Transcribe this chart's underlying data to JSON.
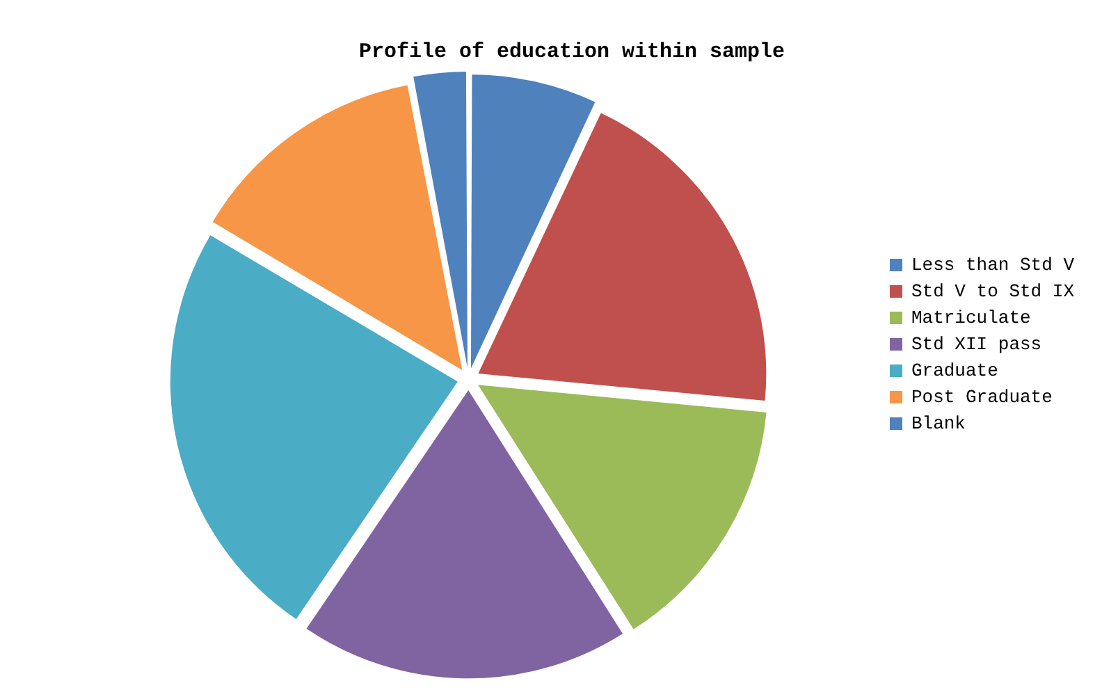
{
  "chart_data": {
    "type": "pie",
    "title": "Profile of education within sample",
    "categories": [
      "Less than Std V",
      "Std V to Std IX",
      "Matriculate",
      "Std XII pass",
      "Graduate",
      "Post Graduate",
      "Blank"
    ],
    "values": [
      7,
      19.5,
      14.5,
      18.5,
      24,
      13.5,
      3
    ],
    "colors": [
      "#4f81bd",
      "#c0504d",
      "#9bbb59",
      "#8064a2",
      "#4bacc6",
      "#f79646",
      "#4f81bd"
    ],
    "legend": "right"
  }
}
